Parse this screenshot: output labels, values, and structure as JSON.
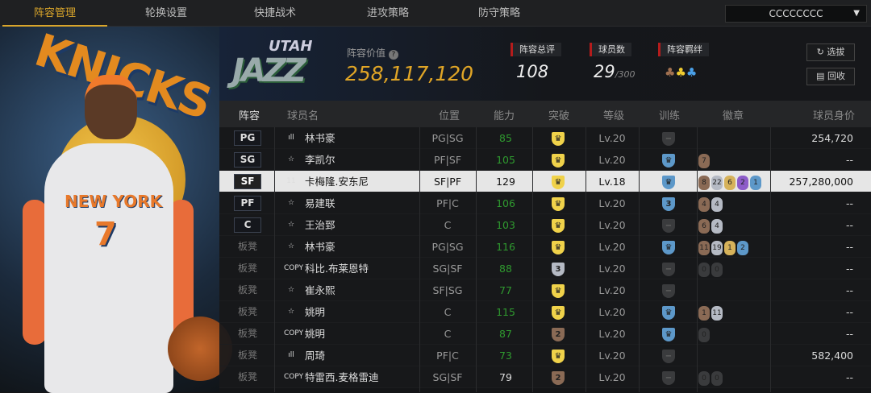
{
  "nav": {
    "tabs": [
      "阵容管理",
      "轮换设置",
      "快捷战术",
      "进攻策略",
      "防守策略"
    ],
    "active": 0,
    "team_select": "CCCCCCCC"
  },
  "hero": {
    "logo_text": "KNICKS",
    "jersey_text": "NEW YORK",
    "jersey_number": "7"
  },
  "summary": {
    "team_logo_top": "UTAH",
    "team_logo_main": "JAZZ",
    "value_label": "阵容价值",
    "value": "258,117,120",
    "rating_label": "阵容总评",
    "rating": "108",
    "players_label": "球员数",
    "players": "29",
    "players_max": "/300",
    "bond_label": "阵容羁绊",
    "draft_button": "选拔",
    "recycle_button": "回收"
  },
  "table": {
    "headers": [
      "阵容",
      "球员名",
      "位置",
      "能力",
      "突破",
      "等级",
      "训练",
      "徽章",
      "球员身价"
    ],
    "colors": {
      "green": "#2f9a2f",
      "crown": "#f0d24a",
      "silver": "#b5bac4",
      "bronze": "#8a6a55",
      "blue": "#5d98c9",
      "gray": "#3a3b3d",
      "gold": "#d6b25a",
      "purple": "#8d5cc9"
    },
    "rows": [
      {
        "slot": "PG",
        "icon": "bars",
        "name": "林书豪",
        "pos": "PG|SG",
        "ability": "85",
        "green": true,
        "brk": "crown",
        "level": "Lv.20",
        "train": "none",
        "badges": [],
        "value": "254,720"
      },
      {
        "slot": "SG",
        "icon": "star",
        "name": "李凯尔",
        "pos": "PF|SF",
        "ability": "105",
        "green": true,
        "brk": "crown",
        "level": "Lv.20",
        "train": "crown",
        "badges": [
          [
            "7",
            "bronze"
          ]
        ],
        "value": "--"
      },
      {
        "slot": "SF",
        "icon": "11",
        "name": "卡梅隆.安东尼",
        "pos": "SF|PF",
        "ability": "129",
        "green": false,
        "brk": "crown",
        "level": "Lv.18",
        "train": "crown",
        "badges": [
          [
            "8",
            "bronze"
          ],
          [
            "22",
            "silver"
          ],
          [
            "6",
            "gold"
          ],
          [
            "2",
            "purple"
          ],
          [
            "1",
            "blue"
          ]
        ],
        "value": "257,280,000",
        "hl": true
      },
      {
        "slot": "PF",
        "icon": "star",
        "name": "易建联",
        "pos": "PF|C",
        "ability": "106",
        "green": true,
        "brk": "crown",
        "level": "Lv.20",
        "train": "3",
        "badges": [
          [
            "4",
            "bronze"
          ],
          [
            "4",
            "silver"
          ]
        ],
        "value": "--"
      },
      {
        "slot": "C",
        "icon": "star",
        "name": "王治郅",
        "pos": "C",
        "ability": "103",
        "green": true,
        "brk": "crown",
        "level": "Lv.20",
        "train": "none",
        "badges": [
          [
            "6",
            "bronze"
          ],
          [
            "4",
            "silver"
          ]
        ],
        "value": "--"
      },
      {
        "slot": "板凳",
        "icon": "star",
        "name": "林书豪",
        "pos": "PG|SG",
        "ability": "116",
        "green": true,
        "brk": "crown",
        "level": "Lv.20",
        "train": "crown",
        "badges": [
          [
            "11",
            "bronze"
          ],
          [
            "19",
            "silver"
          ],
          [
            "1",
            "gold"
          ],
          [
            "2",
            "blue"
          ]
        ],
        "value": "--"
      },
      {
        "slot": "板凳",
        "icon": "COPY",
        "name": "科比.布莱恩特",
        "pos": "SG|SF",
        "ability": "88",
        "green": true,
        "brk": "3",
        "level": "Lv.20",
        "train": "none",
        "badges": [
          [
            "0",
            "gray"
          ],
          [
            "0",
            "gray"
          ]
        ],
        "value": "--"
      },
      {
        "slot": "板凳",
        "icon": "star",
        "name": "崔永熙",
        "pos": "SF|SG",
        "ability": "77",
        "green": true,
        "brk": "crown",
        "level": "Lv.20",
        "train": "none",
        "badges": [],
        "value": "--"
      },
      {
        "slot": "板凳",
        "icon": "star",
        "name": "姚明",
        "pos": "C",
        "ability": "115",
        "green": true,
        "brk": "crown",
        "level": "Lv.20",
        "train": "crown",
        "badges": [
          [
            "1",
            "bronze"
          ],
          [
            "11",
            "silver"
          ]
        ],
        "value": "--"
      },
      {
        "slot": "板凳",
        "icon": "COPY",
        "name": "姚明",
        "pos": "C",
        "ability": "87",
        "green": true,
        "brk": "2",
        "level": "Lv.20",
        "train": "crown",
        "badges": [
          [
            "0",
            "gray"
          ]
        ],
        "value": "--"
      },
      {
        "slot": "板凳",
        "icon": "bars",
        "name": "周琦",
        "pos": "PF|C",
        "ability": "73",
        "green": true,
        "brk": "crown",
        "level": "Lv.20",
        "train": "none",
        "badges": [],
        "value": "582,400"
      },
      {
        "slot": "板凳",
        "icon": "COPY",
        "name": "特雷西.麦格雷迪",
        "pos": "SG|SF",
        "ability": "79",
        "green": false,
        "brk": "2",
        "level": "Lv.20",
        "train": "none",
        "badges": [
          [
            "0",
            "gray"
          ],
          [
            "0",
            "gray"
          ]
        ],
        "value": "--"
      }
    ]
  }
}
